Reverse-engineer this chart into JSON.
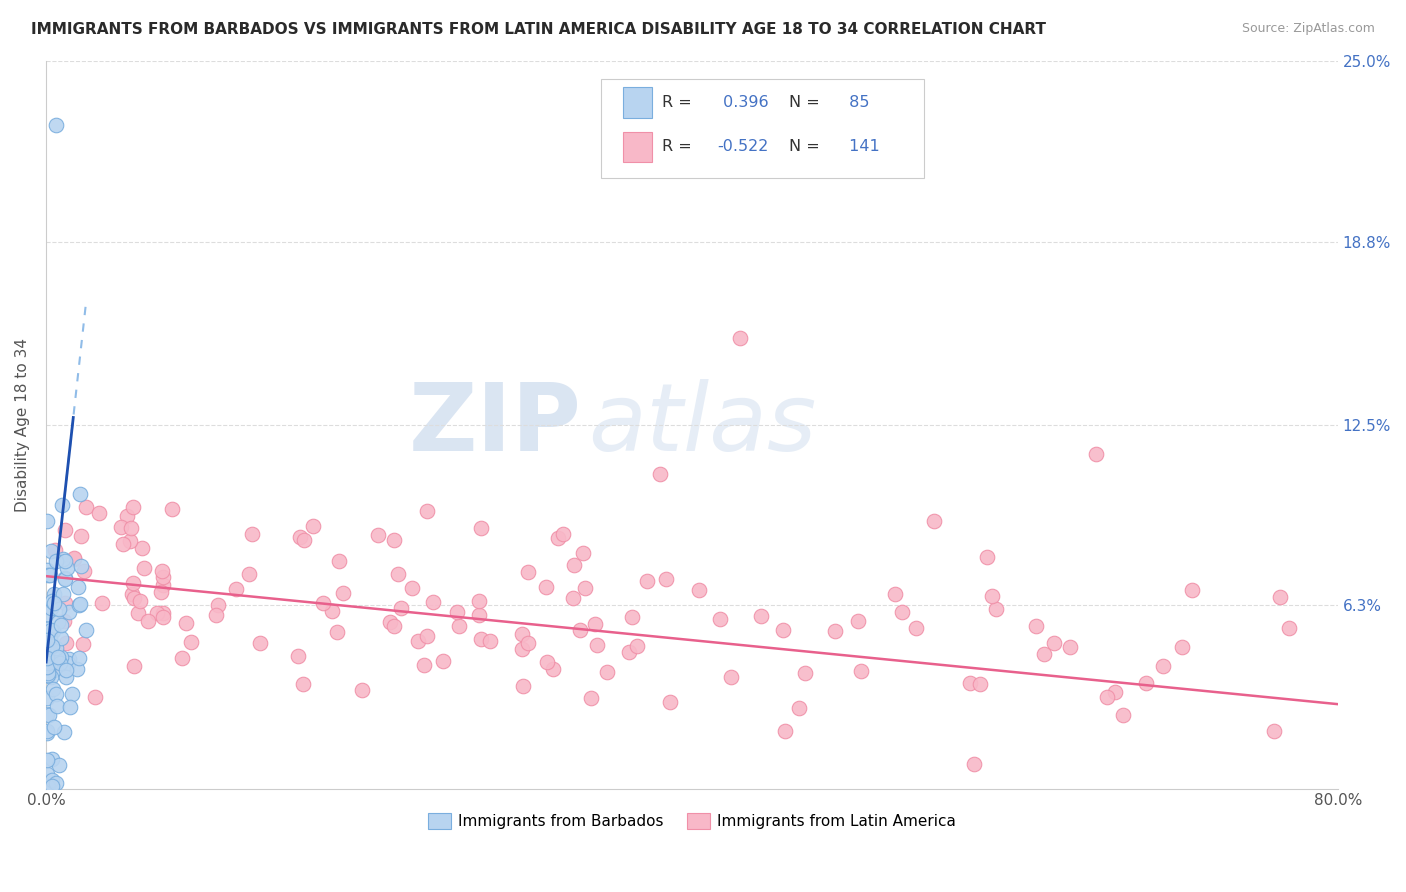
{
  "title": "IMMIGRANTS FROM BARBADOS VS IMMIGRANTS FROM LATIN AMERICA DISABILITY AGE 18 TO 34 CORRELATION CHART",
  "source": "Source: ZipAtlas.com",
  "ylabel": "Disability Age 18 to 34",
  "xlim": [
    0,
    0.8
  ],
  "ylim": [
    0,
    0.25
  ],
  "xtick_positions": [
    0.0,
    0.1,
    0.2,
    0.3,
    0.4,
    0.5,
    0.6,
    0.7,
    0.8
  ],
  "xticklabels": [
    "0.0%",
    "",
    "",
    "",
    "",
    "",
    "",
    "",
    "80.0%"
  ],
  "ytick_values": [
    0.0,
    0.063,
    0.125,
    0.188,
    0.25
  ],
  "ytick_right_labels": [
    "",
    "6.3%",
    "12.5%",
    "18.8%",
    "25.0%"
  ],
  "watermark_zip": "ZIP",
  "watermark_atlas": "atlas",
  "barbados_R": 0.396,
  "barbados_N": 85,
  "latin_R": -0.522,
  "latin_N": 141,
  "barbados_dot_fill": "#B8D4F0",
  "barbados_dot_edge": "#7AAEDE",
  "latin_dot_fill": "#F8B8C8",
  "latin_dot_edge": "#F090A8",
  "trend_blue": "#1E50B0",
  "trend_pink": "#E8608C",
  "trend_blue_dash": "#90BCE8",
  "text_blue": "#4472C4",
  "legend_label_barbados": "Immigrants from Barbados",
  "legend_label_latin": "Immigrants from Latin America",
  "grid_color": "#DDDDDD",
  "spine_color": "#CCCCCC"
}
